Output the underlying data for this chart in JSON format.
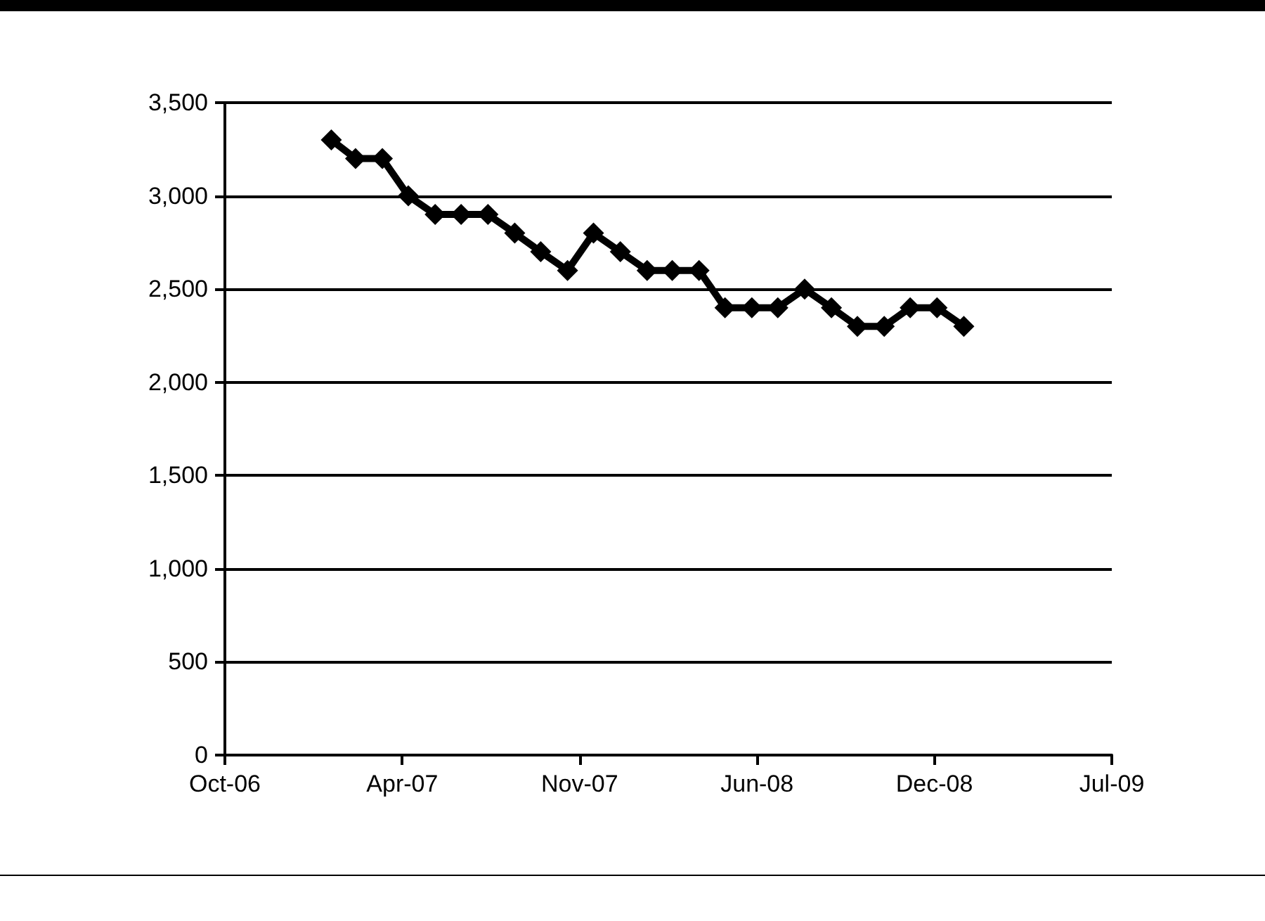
{
  "chart_data": {
    "type": "line",
    "x": [
      "2007-02",
      "2007-03",
      "2007-04",
      "2007-05",
      "2007-06",
      "2007-07",
      "2007-08",
      "2007-09",
      "2007-10",
      "2007-11",
      "2007-12",
      "2008-01",
      "2008-02",
      "2008-03",
      "2008-04",
      "2008-05",
      "2008-06",
      "2008-07",
      "2008-08",
      "2008-09",
      "2008-10",
      "2008-11",
      "2008-12",
      "2009-01",
      "2009-02"
    ],
    "series": [
      {
        "color": "#000000",
        "values": [
          3300,
          3200,
          3200,
          3000,
          2900,
          2900,
          2900,
          2800,
          2700,
          2600,
          2800,
          2700,
          2600,
          2600,
          2600,
          2400,
          2400,
          2400,
          2500,
          2400,
          2300,
          2300,
          2400,
          2400,
          2300
        ]
      }
    ],
    "xlim": [
      "2006-10-01",
      "2009-07-22"
    ],
    "xticks": [
      {
        "value": "2006-10-01",
        "label": "Oct-06"
      },
      {
        "value": "2007-04-24",
        "label": "Apr-07"
      },
      {
        "value": "2007-11-15",
        "label": "Nov-07"
      },
      {
        "value": "2008-06-07",
        "label": "Jun-08"
      },
      {
        "value": "2008-12-29",
        "label": "Dec-08"
      },
      {
        "value": "2009-07-22",
        "label": "Jul-09"
      }
    ],
    "ylim": [
      0,
      3500
    ],
    "yticks": [
      {
        "value": 0,
        "label": "0"
      },
      {
        "value": 500,
        "label": "500"
      },
      {
        "value": 1000,
        "label": "1,000"
      },
      {
        "value": 1500,
        "label": "1,500"
      },
      {
        "value": 2000,
        "label": "2,000"
      },
      {
        "value": 2500,
        "label": "2,500"
      },
      {
        "value": 3000,
        "label": "3,000"
      },
      {
        "value": 3500,
        "label": "3,500"
      }
    ],
    "grid": "y",
    "marker": "diamond",
    "line_style": "solid"
  }
}
